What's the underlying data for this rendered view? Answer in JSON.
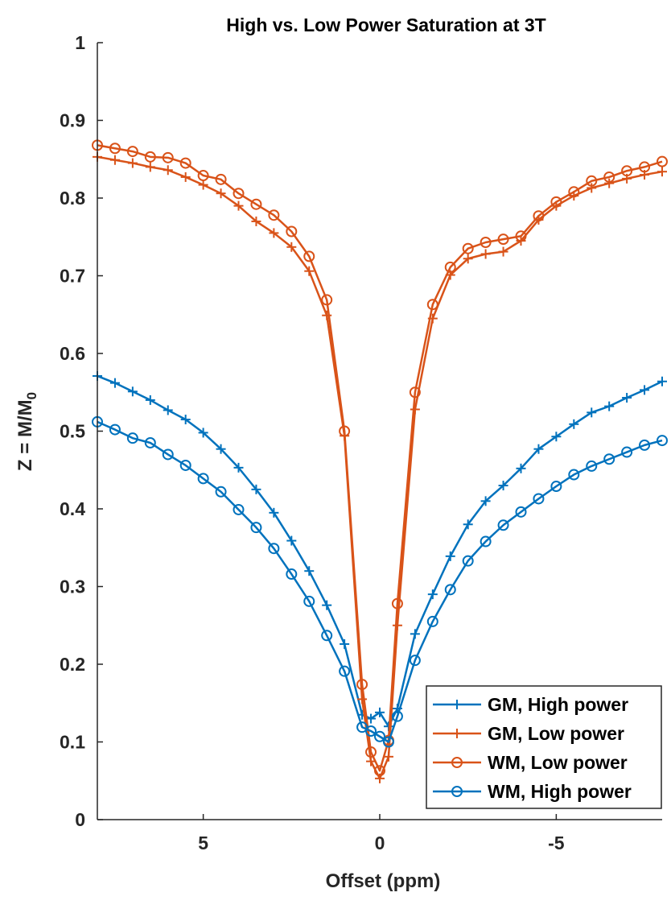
{
  "chart_data": {
    "type": "line",
    "title": "High vs. Low Power Saturation at 3T",
    "xlabel": "Offset (ppm)",
    "ylabel": {
      "main": "Z = M/M",
      "subscript": "0"
    },
    "xlim": [
      8,
      -8
    ],
    "x_reversed": true,
    "ylim": [
      0,
      1
    ],
    "xticks": [
      5,
      0,
      -5
    ],
    "xtick_labels": [
      "5",
      "0",
      "-5"
    ],
    "yticks": [
      0,
      0.1,
      0.2,
      0.3,
      0.4,
      0.5,
      0.6,
      0.7,
      0.8,
      0.9,
      1
    ],
    "ytick_labels": [
      "0",
      "0.1",
      "0.2",
      "0.3",
      "0.4",
      "0.5",
      "0.6",
      "0.7",
      "0.8",
      "0.9",
      "1"
    ],
    "grid": false,
    "legend_position": "bottom-right",
    "x": [
      8,
      7.5,
      7,
      6.5,
      6,
      5.5,
      5,
      4.5,
      4,
      3.5,
      3,
      2.5,
      2,
      1.5,
      1,
      0.5,
      0.25,
      0,
      -0.25,
      -0.5,
      -1,
      -1.5,
      -2,
      -2.5,
      -3,
      -3.5,
      -4,
      -4.5,
      -5,
      -5.5,
      -6,
      -6.5,
      -7,
      -7.5,
      -8
    ],
    "series": [
      {
        "name": "GM, High power",
        "color": "#0072BD",
        "marker": "plus",
        "values": [
          0.571,
          0.562,
          0.551,
          0.54,
          0.527,
          0.515,
          0.498,
          0.477,
          0.453,
          0.425,
          0.395,
          0.359,
          0.32,
          0.276,
          0.226,
          0.135,
          0.13,
          0.138,
          0.12,
          0.143,
          0.239,
          0.29,
          0.339,
          0.38,
          0.41,
          0.43,
          0.452,
          0.477,
          0.493,
          0.509,
          0.524,
          0.532,
          0.543,
          0.553,
          0.564
        ]
      },
      {
        "name": "GM, Low power",
        "color": "#D95319",
        "marker": "plus",
        "values": [
          0.853,
          0.849,
          0.845,
          0.84,
          0.836,
          0.827,
          0.817,
          0.806,
          0.79,
          0.77,
          0.755,
          0.737,
          0.706,
          0.649,
          0.494,
          0.155,
          0.075,
          0.053,
          0.081,
          0.25,
          0.528,
          0.645,
          0.701,
          0.722,
          0.728,
          0.731,
          0.745,
          0.772,
          0.79,
          0.803,
          0.813,
          0.819,
          0.825,
          0.83,
          0.834
        ]
      },
      {
        "name": "WM, Low power",
        "color": "#D95319",
        "marker": "circle",
        "values": [
          0.868,
          0.864,
          0.86,
          0.853,
          0.852,
          0.845,
          0.829,
          0.824,
          0.806,
          0.792,
          0.778,
          0.757,
          0.725,
          0.669,
          0.5,
          0.174,
          0.087,
          0.063,
          0.102,
          0.278,
          0.55,
          0.663,
          0.711,
          0.735,
          0.743,
          0.747,
          0.751,
          0.777,
          0.795,
          0.808,
          0.822,
          0.827,
          0.835,
          0.84,
          0.847
        ]
      },
      {
        "name": "WM, High power",
        "color": "#0072BD",
        "marker": "circle",
        "values": [
          0.512,
          0.502,
          0.491,
          0.485,
          0.47,
          0.456,
          0.439,
          0.422,
          0.399,
          0.376,
          0.349,
          0.316,
          0.281,
          0.237,
          0.191,
          0.119,
          0.114,
          0.107,
          0.1,
          0.133,
          0.205,
          0.255,
          0.296,
          0.333,
          0.358,
          0.379,
          0.396,
          0.413,
          0.429,
          0.444,
          0.455,
          0.464,
          0.473,
          0.482,
          0.488
        ]
      }
    ]
  }
}
